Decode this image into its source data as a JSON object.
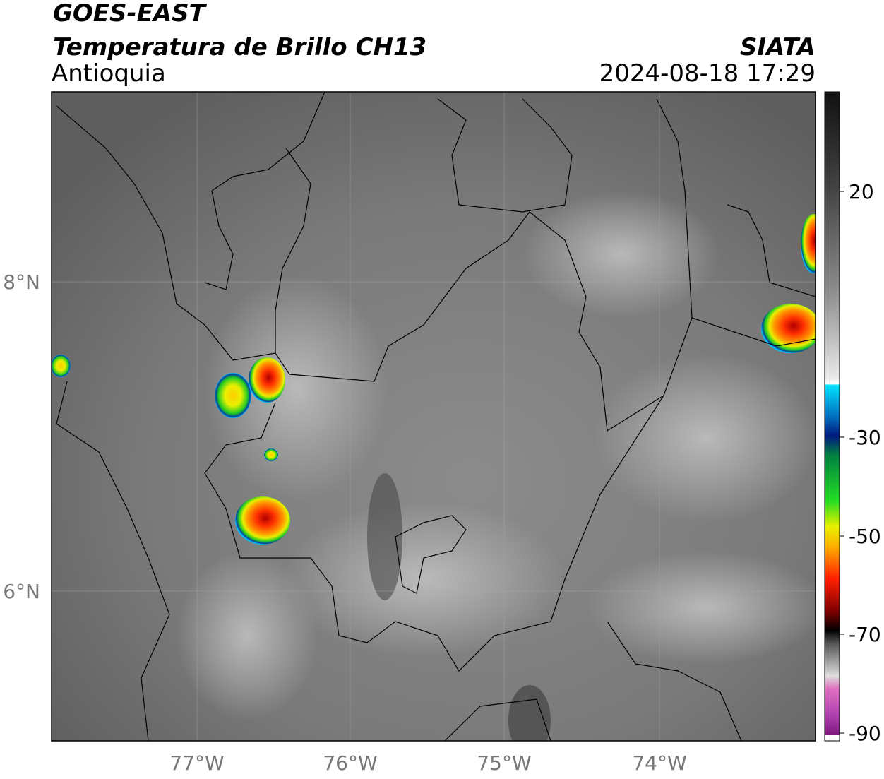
{
  "header": {
    "title": "GOES-EAST",
    "subtitle": "Temperatura de Brillo CH13",
    "region": "Antioquia",
    "source": "SIATA",
    "datetime": "2024-08-18 17:29"
  },
  "map": {
    "lat_labels": [
      "8°N",
      "6°N"
    ],
    "lon_labels": [
      "77°W",
      "76°W",
      "75°W",
      "74°W"
    ]
  },
  "colorbar": {
    "ticks": [
      "20",
      "-30",
      "-50",
      "-70",
      "-90"
    ]
  }
}
